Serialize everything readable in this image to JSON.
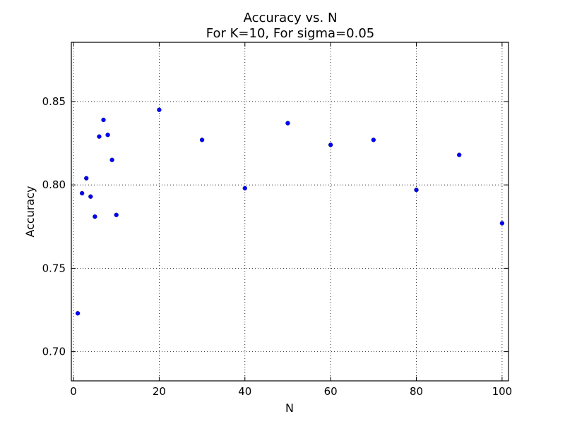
{
  "chart_data": {
    "type": "scatter",
    "title": "Accuracy vs. N",
    "subtitle": "For K=10, For sigma=0.05",
    "xlabel": "N",
    "ylabel": "Accuracy",
    "xlim": [
      -0.5,
      101.5
    ],
    "ylim": [
      0.6825,
      0.8855
    ],
    "x_ticks": [
      0,
      20,
      40,
      60,
      80,
      100
    ],
    "x_tick_labels": [
      "0",
      "20",
      "40",
      "60",
      "80",
      "100"
    ],
    "y_ticks": [
      0.7,
      0.75,
      0.8,
      0.85
    ],
    "y_tick_labels": [
      "0.70",
      "0.75",
      "0.80",
      "0.85"
    ],
    "grid": true,
    "legend": "none",
    "marker_color": "#0000ff",
    "x": [
      1,
      2,
      3,
      4,
      5,
      6,
      7,
      8,
      9,
      10,
      20,
      30,
      40,
      50,
      60,
      70,
      80,
      90,
      100
    ],
    "y": [
      0.723,
      0.795,
      0.804,
      0.793,
      0.781,
      0.829,
      0.839,
      0.83,
      0.815,
      0.782,
      0.845,
      0.827,
      0.798,
      0.837,
      0.824,
      0.827,
      0.797,
      0.818,
      0.777
    ]
  }
}
